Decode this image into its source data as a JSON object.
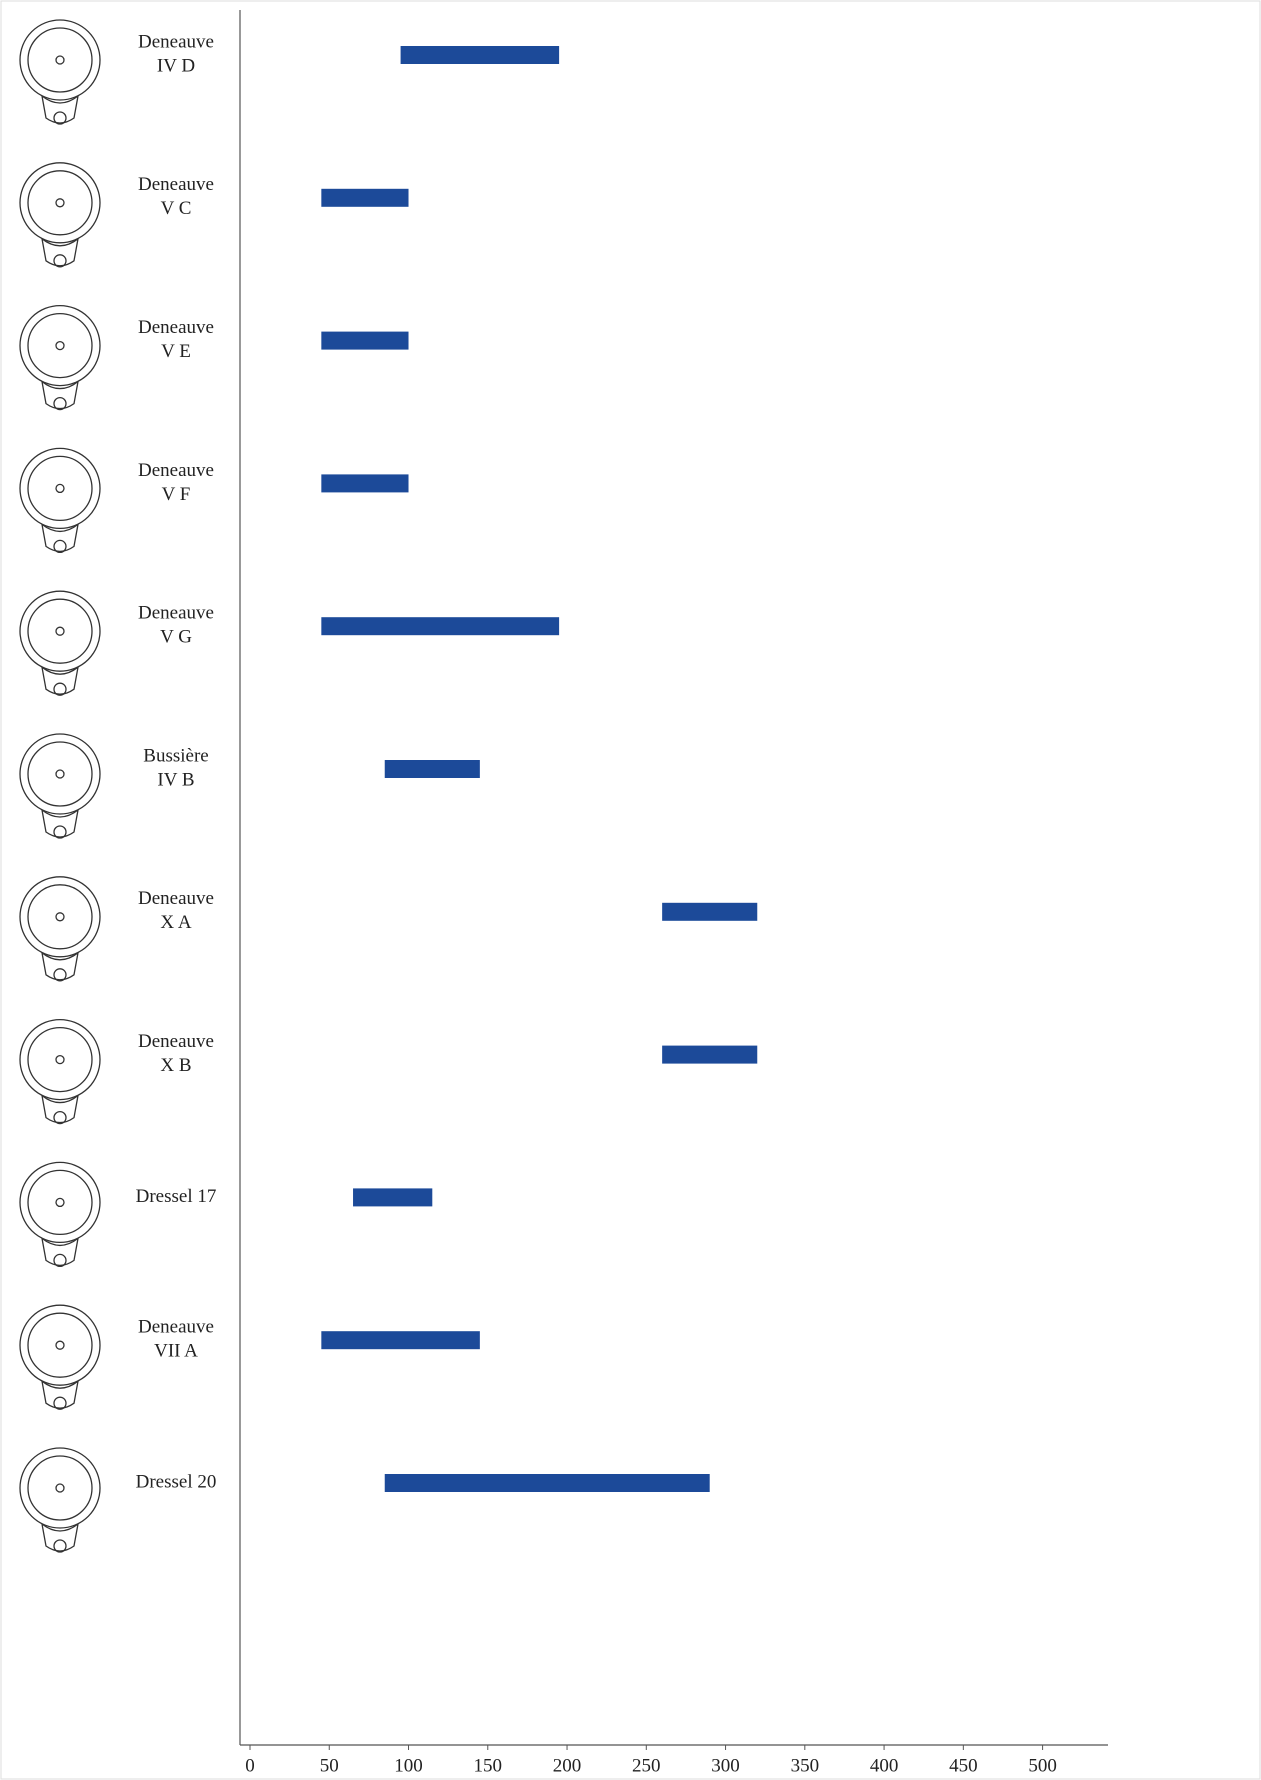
{
  "chart_data": {
    "type": "range-bar",
    "categories": [
      [
        "Deneauve",
        "IV D"
      ],
      [
        "Deneauve",
        "V C"
      ],
      [
        "Deneauve",
        "V E"
      ],
      [
        "Deneauve",
        "V F"
      ],
      [
        "Deneauve",
        "V G"
      ],
      [
        "Bussière",
        "IV B"
      ],
      [
        "Deneauve",
        "X A"
      ],
      [
        "Deneauve",
        "X B"
      ],
      [
        "Dressel 17"
      ],
      [
        "Deneauve",
        "VII A"
      ],
      [
        "Dressel 20"
      ]
    ],
    "values": [
      [
        95,
        195
      ],
      [
        45,
        100
      ],
      [
        45,
        100
      ],
      [
        45,
        100
      ],
      [
        45,
        195
      ],
      [
        85,
        145
      ],
      [
        260,
        320
      ],
      [
        260,
        320
      ],
      [
        65,
        115
      ],
      [
        45,
        145
      ],
      [
        85,
        290
      ]
    ],
    "color": "#1c4a99",
    "xlim": [
      0,
      540
    ],
    "xticks": [
      0,
      50,
      100,
      150,
      200,
      250,
      300,
      350,
      400,
      450,
      500
    ]
  }
}
